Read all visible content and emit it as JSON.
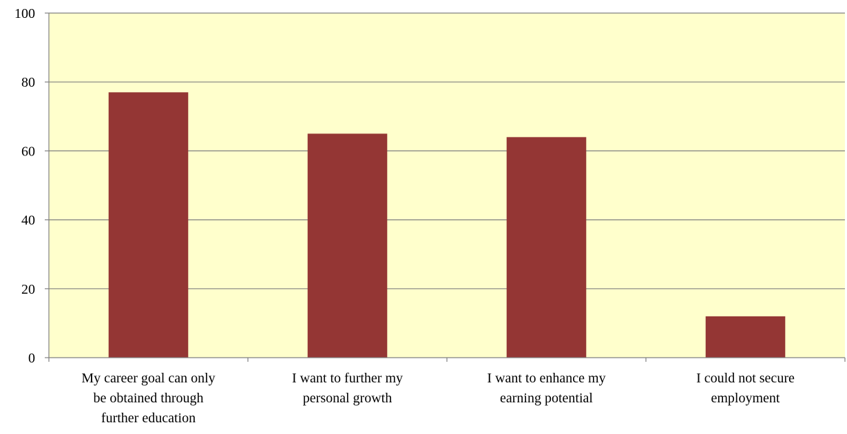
{
  "chart_data": {
    "type": "bar",
    "title": "",
    "xlabel": "",
    "ylabel": "",
    "ylim": [
      0,
      100
    ],
    "yticks": [
      0,
      20,
      40,
      60,
      80,
      100
    ],
    "grid": true,
    "categories": [
      [
        "My career goal can only",
        "be obtained through",
        "further education"
      ],
      [
        "I want to further my",
        "personal growth"
      ],
      [
        "I want to enhance my",
        "earning potential"
      ],
      [
        "I could not secure",
        "employment"
      ]
    ],
    "values": [
      77,
      65,
      64,
      12
    ],
    "colors": {
      "plot_background": "#FFFFCC",
      "bar": "#943634",
      "gridline": "#808080",
      "axis": "#808080"
    }
  }
}
